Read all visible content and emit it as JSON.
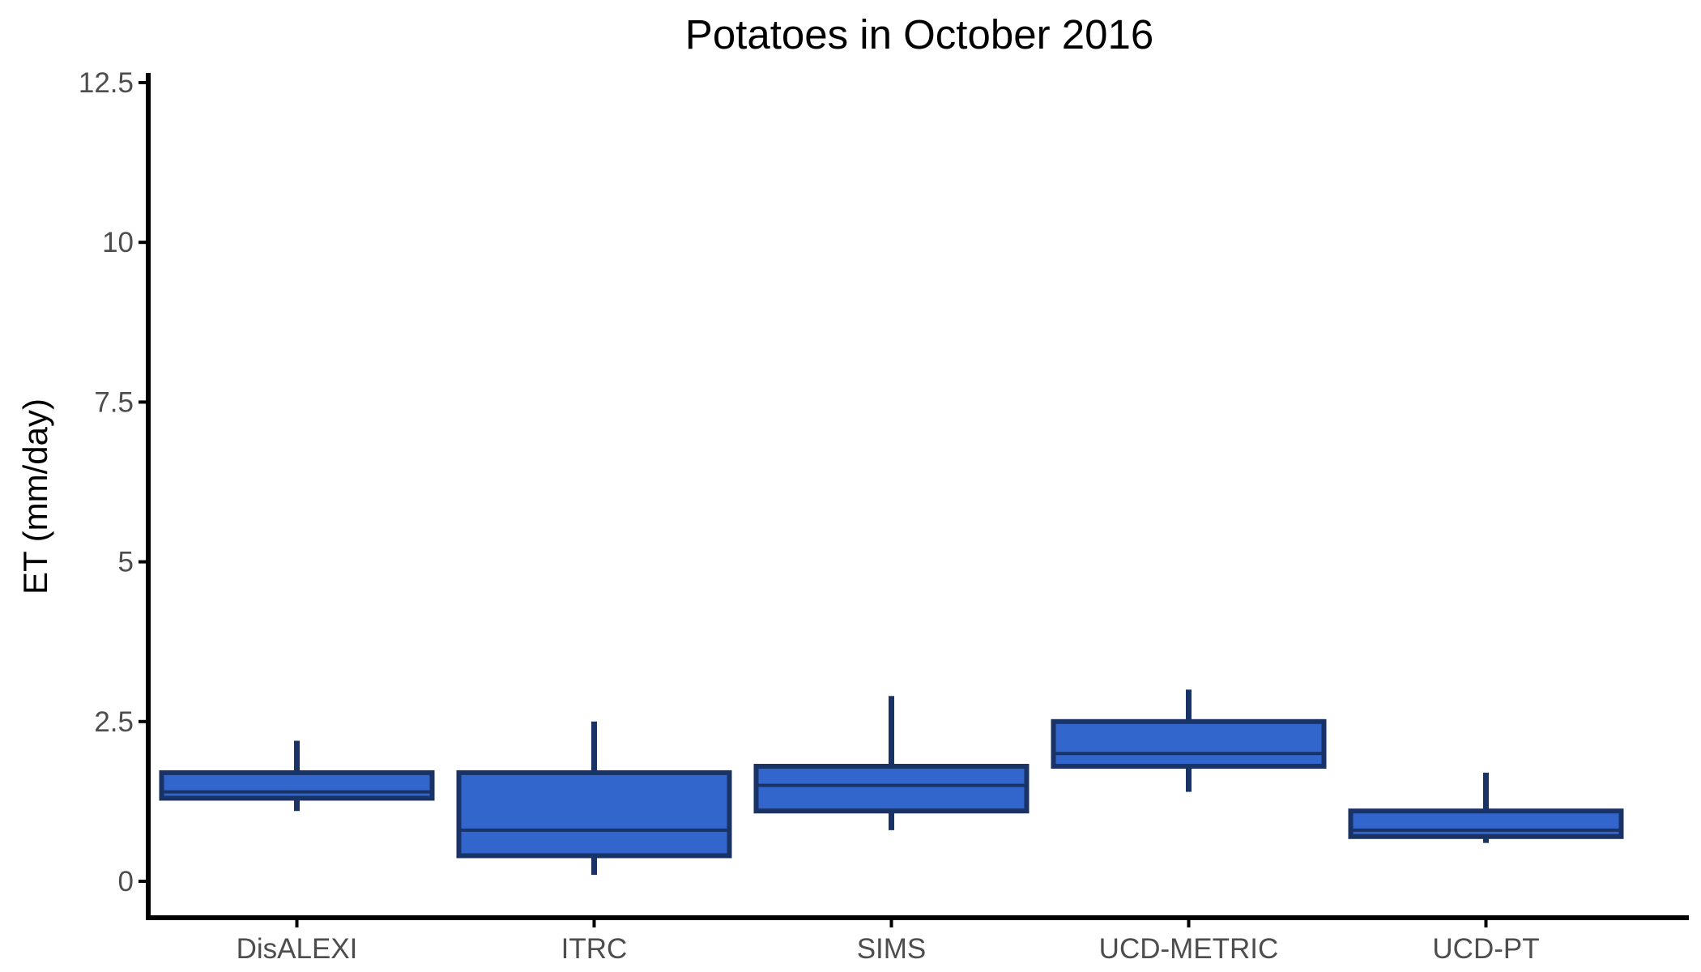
{
  "chart_data": {
    "type": "boxplot",
    "title": "Potatoes in October 2016",
    "xlabel": "",
    "ylabel": "ET (mm/day)",
    "ylim": [
      -0.6,
      12.6
    ],
    "yticks": [
      0,
      2.5,
      5,
      7.5,
      10,
      12.5
    ],
    "ytick_labels": [
      "0",
      "2.5",
      "5",
      "7.5",
      "10",
      "12.5"
    ],
    "grid": false,
    "legend": "none",
    "categories": [
      "DisALEXI",
      "ITRC",
      "SIMS",
      "UCD-METRIC",
      "UCD-PT"
    ],
    "boxes": [
      {
        "category": "DisALEXI",
        "whisker_low": 1.1,
        "q1": 1.3,
        "median": 1.4,
        "q3": 1.7,
        "whisker_high": 2.2
      },
      {
        "category": "ITRC",
        "whisker_low": 0.1,
        "q1": 0.4,
        "median": 0.8,
        "q3": 1.7,
        "whisker_high": 2.5
      },
      {
        "category": "SIMS",
        "whisker_low": 0.8,
        "q1": 1.1,
        "median": 1.5,
        "q3": 1.8,
        "whisker_high": 2.9
      },
      {
        "category": "UCD-METRIC",
        "whisker_low": 1.4,
        "q1": 1.8,
        "median": 2.0,
        "q3": 2.5,
        "whisker_high": 3.0
      },
      {
        "category": "UCD-PT",
        "whisker_low": 0.6,
        "q1": 0.7,
        "median": 0.8,
        "q3": 1.1,
        "whisker_high": 1.7
      }
    ],
    "colors": {
      "box_fill": "#3366cc",
      "box_outline": "#1a3366",
      "axis": "#000000",
      "tick_label": "#4d4d4d"
    }
  }
}
